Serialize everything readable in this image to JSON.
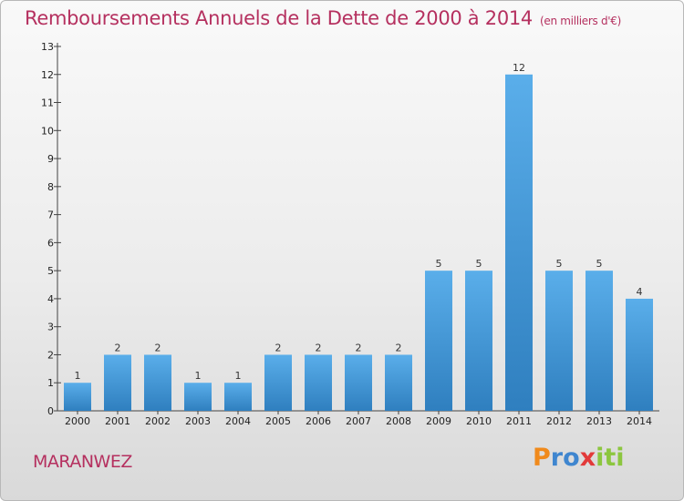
{
  "colors": {
    "title": "#b5305f",
    "bar_light": "#5aaeea",
    "bar_dark": "#2f7fbf",
    "axis": "#444444"
  },
  "chart_data": {
    "type": "bar",
    "title": "Remboursements Annuels de la Dette de 2000 à 2014",
    "subtitle": "(en milliers d'€)",
    "categories": [
      "2000",
      "2001",
      "2002",
      "2003",
      "2004",
      "2005",
      "2006",
      "2007",
      "2008",
      "2009",
      "2010",
      "2011",
      "2012",
      "2013",
      "2014"
    ],
    "values": [
      1,
      2,
      2,
      1,
      1,
      2,
      2,
      2,
      2,
      5,
      5,
      12,
      5,
      5,
      4
    ],
    "ylim": [
      0,
      13
    ],
    "yticks": [
      0,
      1,
      2,
      3,
      4,
      5,
      6,
      7,
      8,
      9,
      10,
      11,
      12,
      13
    ],
    "ytick_labels": [
      "0",
      "1",
      "2",
      "3",
      "4",
      "5",
      "6",
      "7",
      "8",
      "9",
      "10",
      "11",
      "12",
      "13"
    ],
    "xlabel": "",
    "ylabel": "",
    "grid": false,
    "legend": "none"
  },
  "footer": {
    "place_name": "MARANWEZ",
    "brand": {
      "letters": [
        "P",
        "r",
        "o",
        "x",
        "i",
        "t",
        "i"
      ],
      "colors": [
        "#f08a1c",
        "#3f86cf",
        "#3f86cf",
        "#e23a3a",
        "#8cc63f",
        "#8cc63f",
        "#8cc63f"
      ]
    }
  }
}
